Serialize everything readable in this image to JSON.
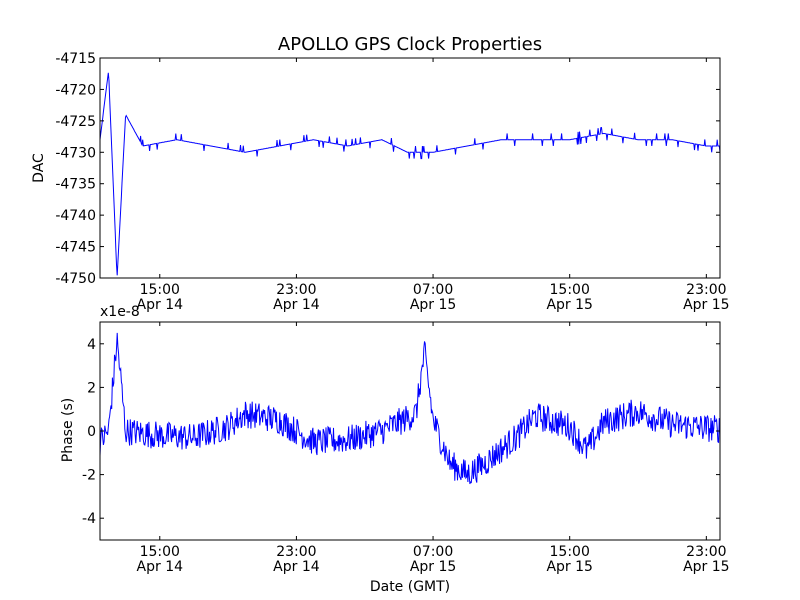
{
  "title": "APOLLO GPS Clock Properties",
  "chart_data": [
    {
      "type": "line",
      "ylabel": "DAC",
      "ylim": [
        -4750,
        -4715
      ],
      "yticks": [
        -4750,
        -4745,
        -4740,
        -4735,
        -4730,
        -4725,
        -4720,
        -4715
      ],
      "xticks": [
        {
          "time": "15:00",
          "date": "Apr 14"
        },
        {
          "time": "23:00",
          "date": "Apr 14"
        },
        {
          "time": "07:00",
          "date": "Apr 15"
        },
        {
          "time": "15:00",
          "date": "Apr 15"
        },
        {
          "time": "23:00",
          "date": "Apr 15"
        }
      ],
      "line_color": "#0000ff",
      "grid": false,
      "series": [
        {
          "x": [
            "Apr 14 11:30",
            "Apr 14 12:00",
            "Apr 14 12:30",
            "Apr 14 13:00",
            "Apr 14 14:00",
            "Apr 14 16:00",
            "Apr 14 18:00",
            "Apr 14 20:00",
            "Apr 14 22:00",
            "Apr 15 00:00",
            "Apr 15 02:00",
            "Apr 15 04:00",
            "Apr 15 05:30",
            "Apr 15 07:00",
            "Apr 15 09:00",
            "Apr 15 11:00",
            "Apr 15 13:00",
            "Apr 15 15:00",
            "Apr 15 17:00",
            "Apr 15 19:00",
            "Apr 15 21:00",
            "Apr 15 23:00",
            "Apr 15 23:30"
          ],
          "values": [
            -4728,
            -4717,
            -4750,
            -4724,
            -4729,
            -4728,
            -4729,
            -4730,
            -4729,
            -4728,
            -4729,
            -4728,
            -4730,
            -4730,
            -4729,
            -4728,
            -4728,
            -4728,
            -4727,
            -4728,
            -4728,
            -4729,
            -4729
          ]
        }
      ]
    },
    {
      "type": "line",
      "ylabel": "Phase (s)",
      "xlabel": "Date (GMT)",
      "offset_label": "x1e-8",
      "ylim": [
        -5,
        5
      ],
      "yticks": [
        -4,
        -2,
        0,
        2,
        4
      ],
      "xticks": [
        {
          "time": "15:00",
          "date": "Apr 14"
        },
        {
          "time": "23:00",
          "date": "Apr 14"
        },
        {
          "time": "07:00",
          "date": "Apr 15"
        },
        {
          "time": "15:00",
          "date": "Apr 15"
        },
        {
          "time": "23:00",
          "date": "Apr 15"
        }
      ],
      "line_color": "#0000ff",
      "grid": false,
      "series": [
        {
          "x": [
            "Apr 14 11:30",
            "Apr 14 12:00",
            "Apr 14 12:30",
            "Apr 14 13:00",
            "Apr 14 15:00",
            "Apr 14 17:00",
            "Apr 14 19:00",
            "Apr 14 20:00",
            "Apr 14 22:00",
            "Apr 15 00:00",
            "Apr 15 02:00",
            "Apr 15 04:00",
            "Apr 15 06:00",
            "Apr 15 06:30",
            "Apr 15 07:00",
            "Apr 15 08:00",
            "Apr 15 09:00",
            "Apr 15 10:00",
            "Apr 15 12:00",
            "Apr 15 13:00",
            "Apr 15 15:00",
            "Apr 15 16:00",
            "Apr 15 17:00",
            "Apr 15 19:00",
            "Apr 15 21:00",
            "Apr 15 23:30"
          ],
          "values": [
            -0.5,
            0.0,
            4.2,
            0.0,
            -0.2,
            -0.3,
            0.2,
            0.8,
            0.5,
            -0.5,
            -0.4,
            0.0,
            0.8,
            3.6,
            0.5,
            -1.5,
            -2.0,
            -1.5,
            -0.2,
            0.7,
            0.2,
            -0.9,
            0.4,
            0.9,
            0.3,
            0.1
          ]
        }
      ]
    }
  ]
}
